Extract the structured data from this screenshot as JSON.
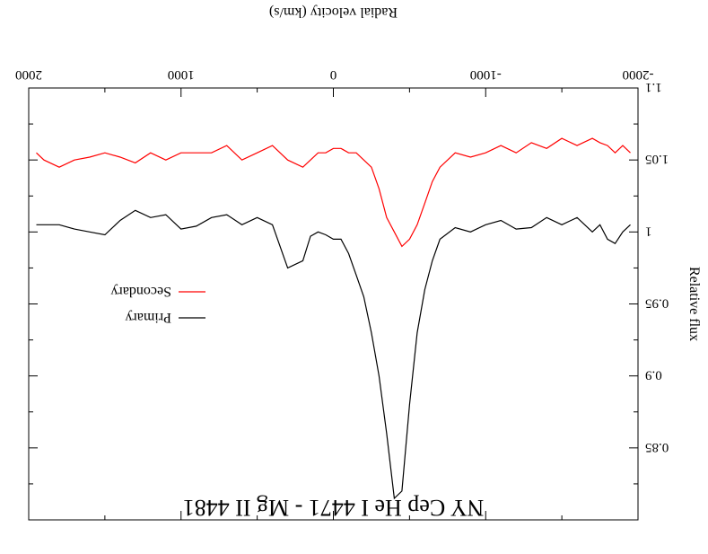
{
  "chart_data": {
    "type": "line",
    "title": "NY Cep He I 4471 - Mg II 4481",
    "xlabel": "Radial velocity (km/s)",
    "ylabel": "Relative flux",
    "xlim": [
      -2000,
      2000
    ],
    "ylim": [
      0.8,
      1.1
    ],
    "y_inverted": true,
    "rotated_180": true,
    "x_ticks": [
      -2000,
      -1000,
      0,
      1000,
      2000
    ],
    "x_tick_labels": [
      "-2000",
      "-1000",
      "0",
      "1000",
      "2000"
    ],
    "y_ticks": [
      0.85,
      0.9,
      0.95,
      1.0,
      1.05,
      1.1
    ],
    "y_tick_labels": [
      "0.85",
      "0.9",
      "0.95",
      "1",
      "1.05",
      "1.1"
    ],
    "legend": {
      "placement": "center-right",
      "entries": [
        "Primary",
        "Secondary"
      ]
    },
    "series": [
      {
        "name": "Primary",
        "color": "#000000",
        "x": [
          -1950,
          -1900,
          -1850,
          -1800,
          -1750,
          -1700,
          -1600,
          -1500,
          -1400,
          -1300,
          -1200,
          -1100,
          -1000,
          -900,
          -800,
          -700,
          -650,
          -600,
          -550,
          -500,
          -450,
          -400,
          -350,
          -300,
          -250,
          -200,
          -150,
          -100,
          -50,
          0,
          50,
          100,
          150,
          200,
          300,
          400,
          500,
          600,
          700,
          800,
          900,
          1000,
          1100,
          1200,
          1300,
          1400,
          1500,
          1600,
          1700,
          1800,
          1900,
          1950
        ],
        "values": [
          1.005,
          1.0,
          0.992,
          0.995,
          1.005,
          1.0,
          1.01,
          1.005,
          1.01,
          1.003,
          1.002,
          1.008,
          1.005,
          1.0,
          1.003,
          0.995,
          0.98,
          0.96,
          0.93,
          0.88,
          0.82,
          0.815,
          0.86,
          0.9,
          0.93,
          0.955,
          0.97,
          0.985,
          0.995,
          0.995,
          0.998,
          1.0,
          0.997,
          0.98,
          0.975,
          1.005,
          1.01,
          1.005,
          1.012,
          1.01,
          1.004,
          1.002,
          1.012,
          1.01,
          1.015,
          1.008,
          0.998,
          1.0,
          1.002,
          1.005,
          1.005,
          1.005
        ]
      },
      {
        "name": "Secondary",
        "color": "#ff0000",
        "x": [
          -1950,
          -1900,
          -1850,
          -1800,
          -1750,
          -1700,
          -1600,
          -1500,
          -1400,
          -1300,
          -1200,
          -1100,
          -1000,
          -900,
          -800,
          -700,
          -650,
          -600,
          -550,
          -500,
          -450,
          -400,
          -350,
          -300,
          -250,
          -200,
          -150,
          -100,
          -50,
          0,
          50,
          100,
          150,
          200,
          300,
          400,
          500,
          600,
          700,
          800,
          900,
          1000,
          1100,
          1200,
          1300,
          1400,
          1500,
          1600,
          1700,
          1800,
          1900,
          1950
        ],
        "values": [
          1.055,
          1.06,
          1.055,
          1.06,
          1.062,
          1.065,
          1.06,
          1.065,
          1.058,
          1.062,
          1.055,
          1.06,
          1.055,
          1.052,
          1.055,
          1.045,
          1.035,
          1.02,
          1.005,
          0.995,
          0.99,
          1.0,
          1.01,
          1.03,
          1.045,
          1.05,
          1.055,
          1.055,
          1.058,
          1.058,
          1.055,
          1.055,
          1.05,
          1.045,
          1.05,
          1.06,
          1.055,
          1.05,
          1.06,
          1.055,
          1.055,
          1.055,
          1.05,
          1.055,
          1.048,
          1.052,
          1.055,
          1.052,
          1.05,
          1.045,
          1.05,
          1.055
        ]
      }
    ]
  }
}
